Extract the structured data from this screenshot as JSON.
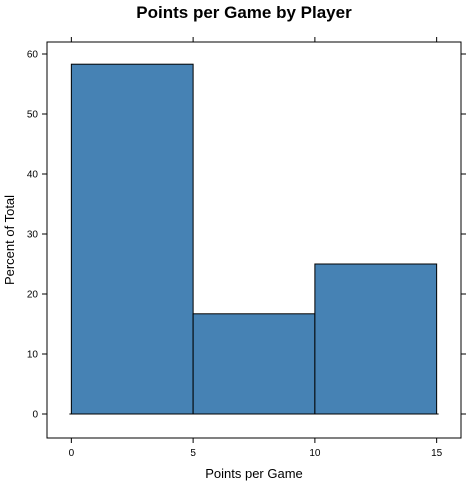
{
  "chart_data": {
    "type": "bar",
    "title": "Points per Game by Player",
    "xlabel": "Points per Game",
    "ylabel": "Percent of Total",
    "bins": [
      [
        0,
        5
      ],
      [
        5,
        10
      ],
      [
        10,
        15
      ]
    ],
    "values": [
      58.3,
      16.7,
      25.0
    ],
    "xlim": [
      -1,
      16
    ],
    "ylim": [
      -4,
      62
    ],
    "x_ticks": [
      0,
      5,
      10,
      15
    ],
    "y_ticks": [
      0,
      10,
      20,
      30,
      40,
      50,
      60
    ],
    "bar_color": "#4682B4",
    "grid": false,
    "legend": "none"
  }
}
